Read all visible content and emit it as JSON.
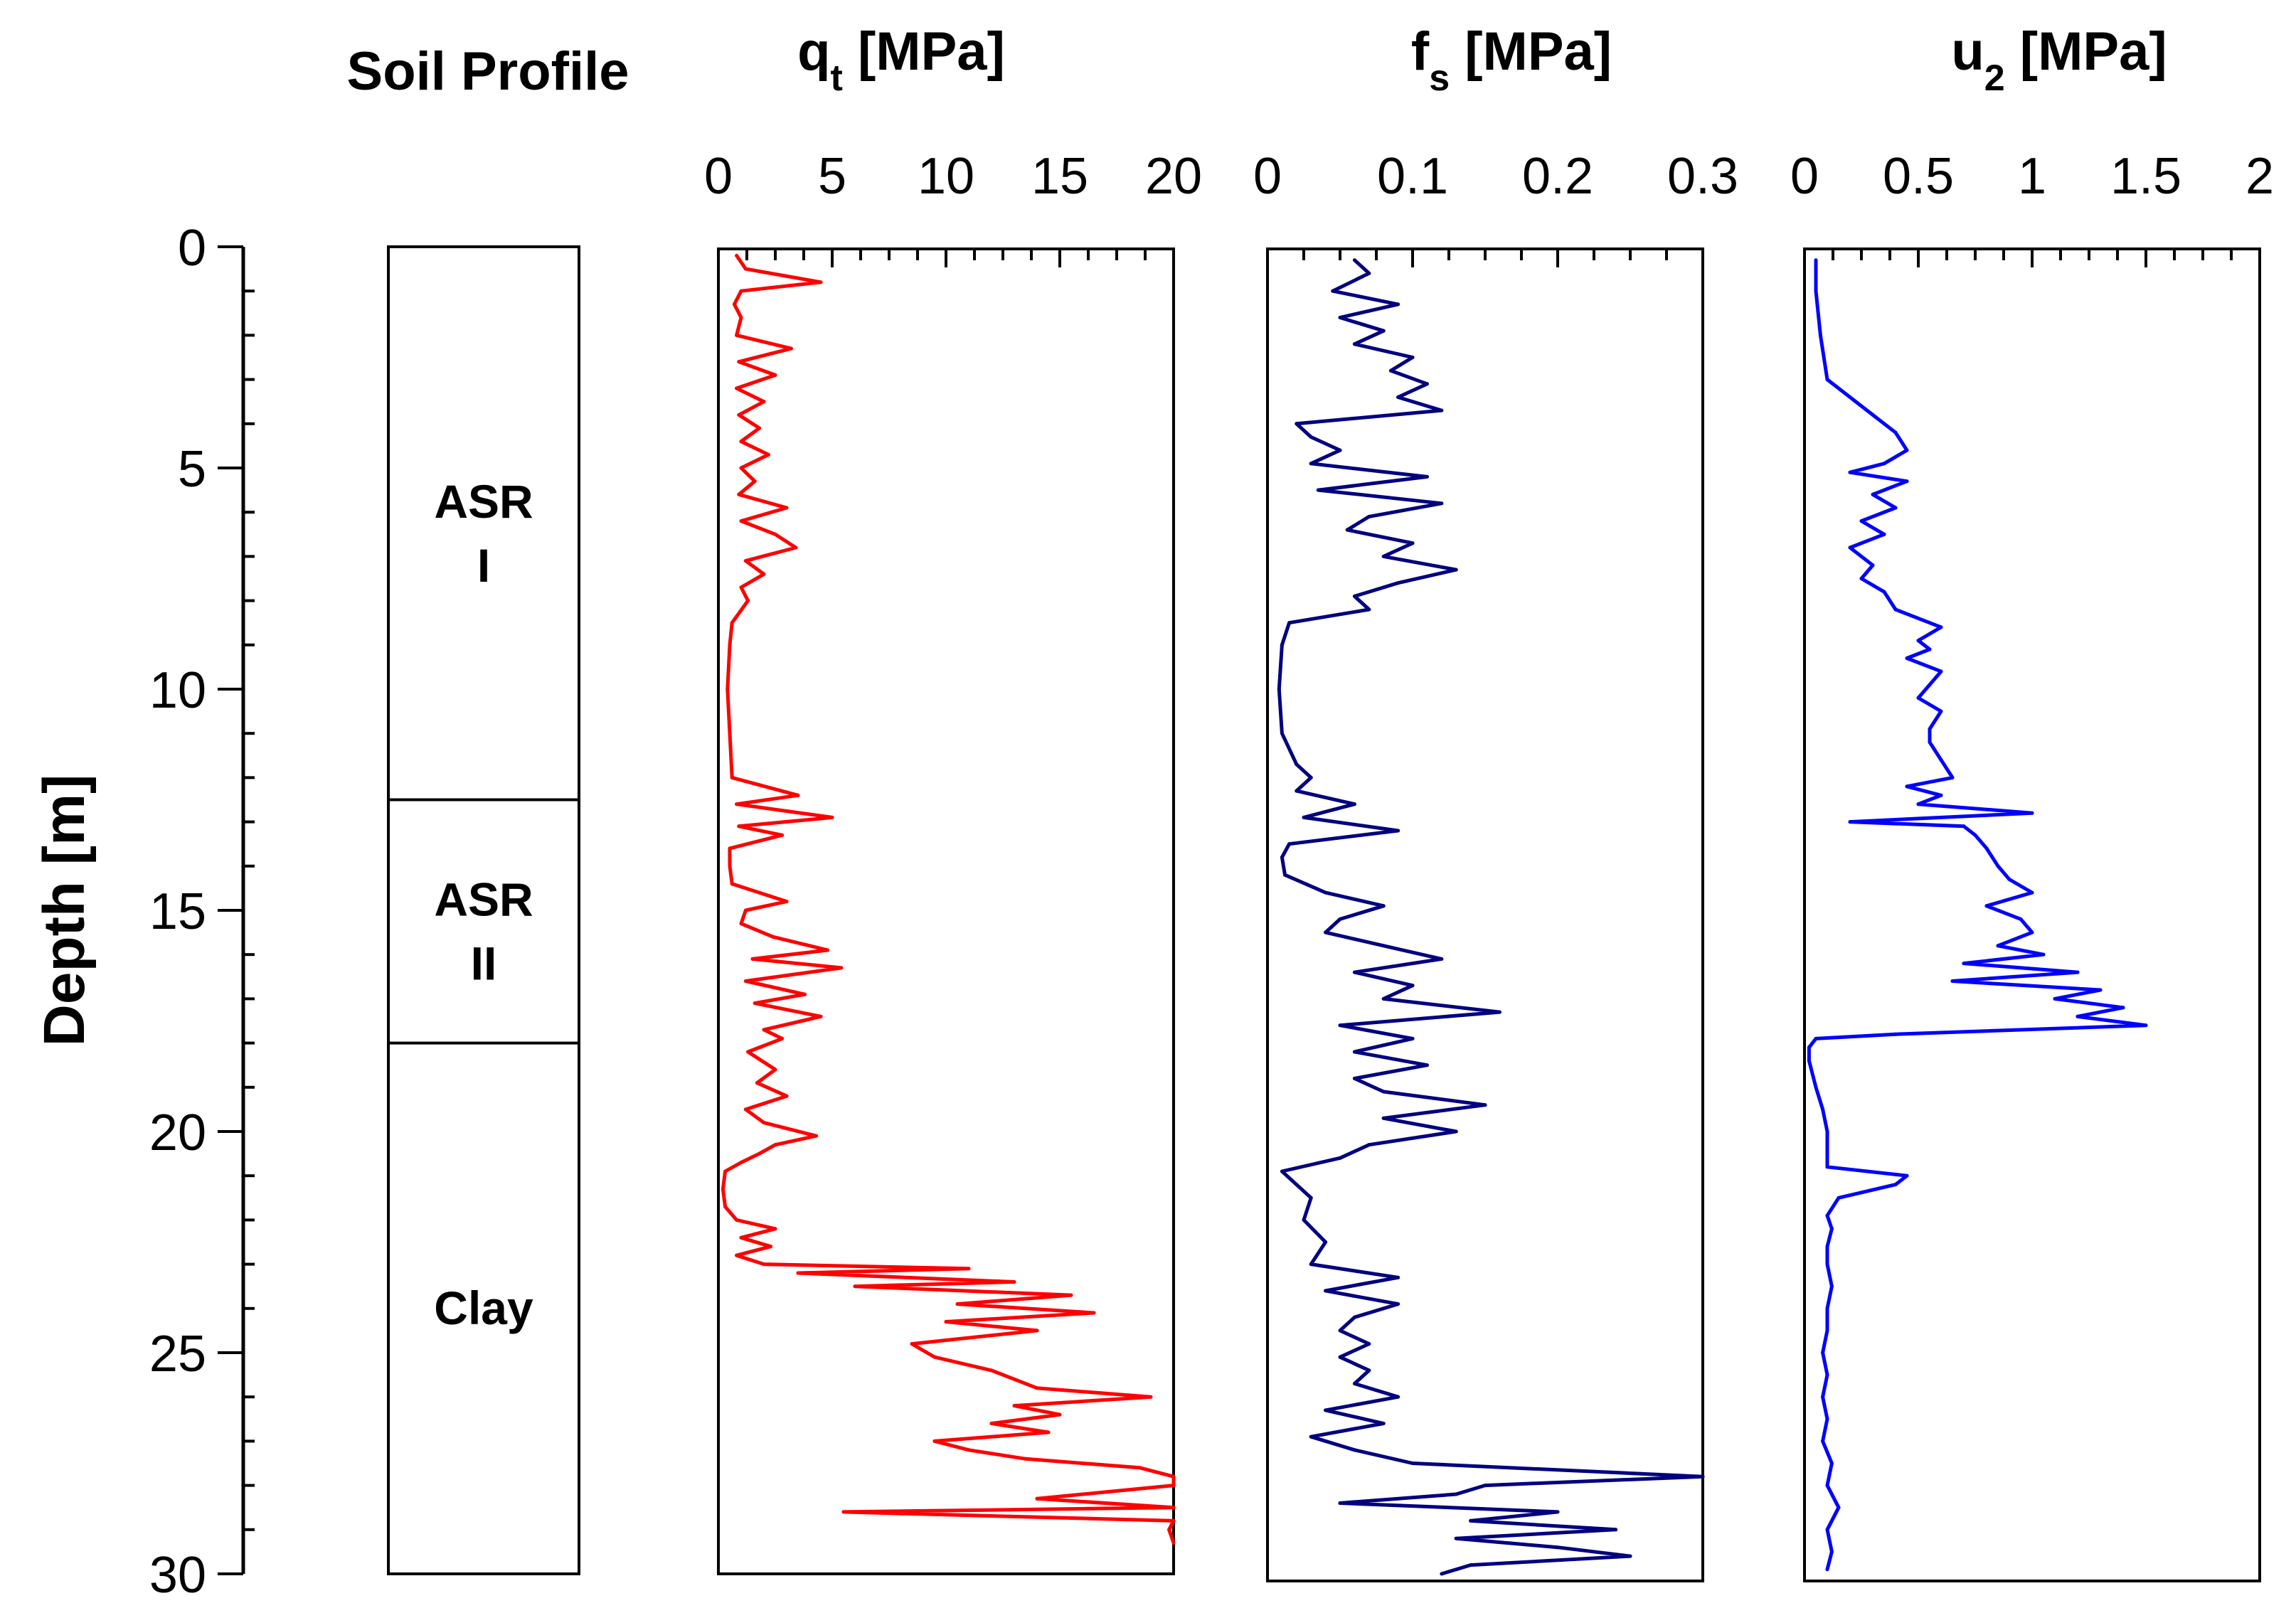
{
  "chart_data": {
    "type": "line",
    "depth_axis": {
      "label": "Depth [m]",
      "range": [
        0,
        30
      ],
      "ticks": [
        "0",
        "5",
        "10",
        "15",
        "20",
        "25",
        "30"
      ]
    },
    "soil_profile": {
      "title": "Soil Profile",
      "layers": [
        {
          "name": "ASR",
          "sub": "I",
          "top": 0,
          "bottom": 12.5
        },
        {
          "name": "ASR",
          "sub": "II",
          "top": 12.5,
          "bottom": 18
        },
        {
          "name": "Clay",
          "sub": "",
          "top": 18,
          "bottom": 30
        }
      ]
    },
    "panels": [
      {
        "id": "qt",
        "title_main": "q",
        "title_sub": "t",
        "title_unit": "[MPa]",
        "color": "#ff0000",
        "xlim": [
          0,
          20
        ],
        "ticks": [
          "0",
          "5",
          "10",
          "15",
          "20"
        ],
        "depth": [
          0.2,
          0.5,
          0.8,
          1.0,
          1.3,
          1.6,
          2.0,
          2.3,
          2.6,
          2.9,
          3.2,
          3.5,
          3.8,
          4.1,
          4.4,
          4.7,
          5.0,
          5.3,
          5.6,
          5.9,
          6.2,
          6.5,
          6.8,
          7.1,
          7.4,
          7.7,
          8.0,
          8.5,
          9.0,
          10.0,
          11.0,
          12.0,
          12.4,
          12.6,
          12.9,
          13.1,
          13.3,
          13.6,
          14.0,
          14.4,
          14.8,
          15.0,
          15.3,
          15.6,
          15.9,
          16.1,
          16.3,
          16.6,
          16.9,
          17.1,
          17.4,
          17.7,
          17.9,
          18.2,
          18.6,
          18.9,
          19.2,
          19.5,
          19.8,
          20.1,
          20.3,
          20.5,
          20.7,
          20.9,
          21.3,
          21.7,
          22.0,
          22.2,
          22.4,
          22.6,
          22.8,
          23.0,
          23.1,
          23.2,
          23.4,
          23.5,
          23.7,
          23.9,
          24.1,
          24.3,
          24.5,
          24.8,
          25.1,
          25.4,
          25.6,
          25.8,
          26.0,
          26.2,
          26.4,
          26.6,
          26.8,
          27.0,
          27.2,
          27.4,
          27.6,
          27.8,
          28.0,
          28.3,
          28.5,
          28.6,
          28.8,
          29.0,
          29.3
        ],
        "values": [
          0.8,
          1.2,
          4.5,
          1.0,
          0.7,
          1.0,
          0.8,
          3.2,
          0.9,
          2.5,
          0.8,
          2.0,
          0.9,
          1.8,
          1.0,
          2.2,
          1.0,
          1.6,
          0.9,
          3.0,
          1.0,
          2.5,
          3.4,
          1.2,
          2.0,
          1.0,
          1.3,
          0.6,
          0.5,
          0.4,
          0.5,
          0.6,
          3.5,
          0.8,
          5.0,
          0.9,
          2.8,
          0.5,
          0.5,
          0.6,
          3.0,
          1.2,
          1.0,
          2.4,
          4.8,
          1.5,
          5.4,
          1.2,
          3.8,
          1.6,
          4.5,
          2.0,
          2.8,
          1.3,
          2.5,
          1.7,
          3.0,
          1.2,
          2.0,
          4.3,
          2.5,
          1.8,
          1.0,
          0.3,
          0.2,
          0.3,
          0.8,
          2.5,
          1.0,
          2.3,
          0.8,
          2.0,
          11.0,
          3.5,
          13.0,
          6.0,
          15.5,
          10.5,
          16.5,
          10.0,
          14.0,
          8.5,
          9.5,
          12.0,
          13.0,
          14.0,
          19.0,
          13.0,
          15.0,
          12.0,
          14.5,
          9.5,
          11.0,
          13.5,
          18.5,
          20.0,
          20.0,
          14.0,
          20.0,
          5.5,
          20.0,
          19.8,
          20.0
        ]
      },
      {
        "id": "fs",
        "title_main": "f",
        "title_sub": "s",
        "title_unit": "[MPa]",
        "color": "#000080",
        "xlim": [
          0,
          0.3
        ],
        "ticks": [
          "0",
          "0.1",
          "0.2",
          "0.3"
        ],
        "depth": [
          0.3,
          0.6,
          1.0,
          1.3,
          1.6,
          1.9,
          2.2,
          2.5,
          2.8,
          3.1,
          3.4,
          3.7,
          4.0,
          4.3,
          4.6,
          4.9,
          5.2,
          5.5,
          5.8,
          6.1,
          6.4,
          6.7,
          7.0,
          7.3,
          7.6,
          7.9,
          8.2,
          8.5,
          9.0,
          10.0,
          11.0,
          11.7,
          12.0,
          12.3,
          12.6,
          12.9,
          13.2,
          13.5,
          13.8,
          14.2,
          14.6,
          14.9,
          15.2,
          15.5,
          15.8,
          16.1,
          16.4,
          16.7,
          17.0,
          17.3,
          17.6,
          17.9,
          18.2,
          18.5,
          18.8,
          19.1,
          19.4,
          19.7,
          20.0,
          20.3,
          20.6,
          20.9,
          21.2,
          21.5,
          22.0,
          22.5,
          23.0,
          23.3,
          23.6,
          23.9,
          24.2,
          24.5,
          24.8,
          25.1,
          25.4,
          25.7,
          26.0,
          26.3,
          26.6,
          26.9,
          27.2,
          27.5,
          27.8,
          28.0,
          28.2,
          28.4,
          28.6,
          28.8,
          29.0,
          29.2,
          29.4,
          29.6,
          29.8,
          30.0
        ],
        "values": [
          0.06,
          0.07,
          0.045,
          0.09,
          0.05,
          0.08,
          0.06,
          0.1,
          0.085,
          0.11,
          0.09,
          0.12,
          0.02,
          0.03,
          0.05,
          0.03,
          0.11,
          0.035,
          0.12,
          0.07,
          0.055,
          0.1,
          0.08,
          0.13,
          0.09,
          0.06,
          0.07,
          0.015,
          0.01,
          0.008,
          0.01,
          0.02,
          0.03,
          0.02,
          0.06,
          0.025,
          0.09,
          0.015,
          0.01,
          0.012,
          0.04,
          0.08,
          0.05,
          0.04,
          0.08,
          0.12,
          0.06,
          0.1,
          0.08,
          0.16,
          0.05,
          0.1,
          0.06,
          0.11,
          0.06,
          0.08,
          0.15,
          0.08,
          0.13,
          0.07,
          0.05,
          0.01,
          0.02,
          0.03,
          0.025,
          0.04,
          0.03,
          0.09,
          0.04,
          0.09,
          0.06,
          0.05,
          0.07,
          0.05,
          0.07,
          0.06,
          0.09,
          0.04,
          0.08,
          0.03,
          0.06,
          0.1,
          0.3,
          0.15,
          0.13,
          0.05,
          0.2,
          0.14,
          0.24,
          0.13,
          0.2,
          0.25,
          0.14,
          0.12
        ]
      },
      {
        "id": "u2",
        "title_main": "u",
        "title_sub": "2",
        "title_unit": "[MPa]",
        "color": "#0000ff",
        "xlim": [
          0,
          2
        ],
        "ticks": [
          "0",
          "0.5",
          "1",
          "1.5",
          "2"
        ],
        "depth": [
          0.3,
          1.0,
          2.0,
          3.0,
          3.8,
          4.2,
          4.6,
          4.9,
          5.1,
          5.3,
          5.6,
          5.9,
          6.2,
          6.5,
          6.8,
          7.2,
          7.5,
          7.8,
          8.2,
          8.6,
          8.9,
          9.1,
          9.3,
          9.6,
          9.9,
          10.2,
          10.5,
          10.9,
          11.2,
          11.6,
          12.0,
          12.2,
          12.4,
          12.6,
          12.8,
          13.0,
          13.1,
          13.3,
          13.6,
          14.0,
          14.3,
          14.6,
          14.9,
          15.2,
          15.5,
          15.8,
          16.0,
          16.2,
          16.4,
          16.6,
          16.8,
          17.0,
          17.2,
          17.4,
          17.6,
          17.8,
          17.9,
          18.1,
          18.4,
          19.0,
          19.5,
          20.0,
          20.5,
          20.8,
          21.0,
          21.2,
          21.5,
          21.9,
          22.2,
          22.6,
          23.0,
          23.5,
          24.0,
          24.5,
          25.0,
          25.5,
          26.0,
          26.5,
          27.0,
          27.5,
          28.0,
          28.5,
          29.0,
          29.5,
          29.9
        ],
        "values": [
          0.05,
          0.05,
          0.07,
          0.1,
          0.3,
          0.4,
          0.45,
          0.35,
          0.2,
          0.45,
          0.3,
          0.4,
          0.25,
          0.35,
          0.2,
          0.3,
          0.25,
          0.35,
          0.4,
          0.6,
          0.5,
          0.55,
          0.45,
          0.6,
          0.55,
          0.5,
          0.6,
          0.55,
          0.55,
          0.6,
          0.65,
          0.45,
          0.6,
          0.5,
          1.0,
          0.2,
          0.7,
          0.75,
          0.8,
          0.85,
          0.9,
          1.0,
          0.8,
          0.95,
          1.0,
          0.85,
          1.05,
          0.7,
          1.2,
          0.65,
          1.3,
          1.1,
          1.4,
          1.2,
          1.5,
          0.4,
          0.05,
          0.02,
          0.02,
          0.05,
          0.08,
          0.1,
          0.1,
          0.1,
          0.45,
          0.4,
          0.15,
          0.1,
          0.12,
          0.1,
          0.1,
          0.12,
          0.1,
          0.1,
          0.08,
          0.1,
          0.08,
          0.1,
          0.08,
          0.12,
          0.1,
          0.15,
          0.1,
          0.12,
          0.1
        ]
      }
    ]
  }
}
